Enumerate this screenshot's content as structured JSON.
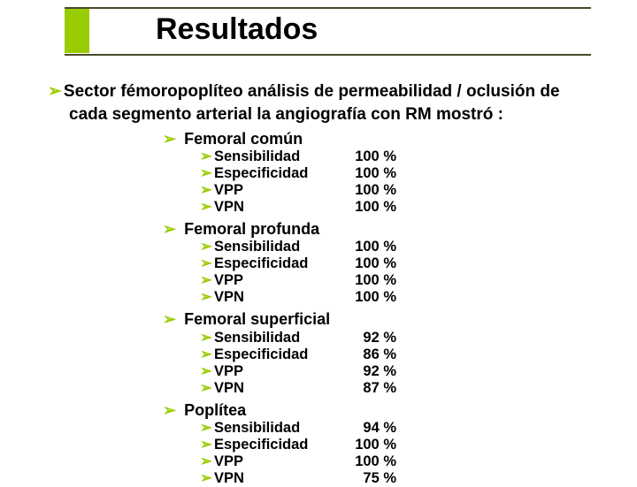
{
  "title": "Resultados",
  "intro_line1": "Sector fémoropoplíteo análisis de permeabilidad / oclusión de",
  "intro_line2": "cada segmento arterial la angiografía con RM mostró  :",
  "bullet_glyph": "➢",
  "colors": {
    "accent": "#99cc00",
    "rule": "#4a4a2a",
    "text": "#000000",
    "background": "#ffffff"
  },
  "sections": [
    {
      "heading": "Femoral común",
      "metrics": [
        {
          "label": "Sensibilidad",
          "value": "100 %"
        },
        {
          "label": "Especificidad",
          "value": "100 %"
        },
        {
          "label": "VPP",
          "value": "100 %"
        },
        {
          "label": "VPN",
          "value": "100 %"
        }
      ]
    },
    {
      "heading": "Femoral profunda",
      "metrics": [
        {
          "label": "Sensibilidad",
          "value": "100 %"
        },
        {
          "label": "Especificidad",
          "value": "100 %"
        },
        {
          "label": "VPP",
          "value": "100 %"
        },
        {
          "label": "VPN",
          "value": "100 %"
        }
      ]
    },
    {
      "heading": "Femoral superficial",
      "metrics": [
        {
          "label": "Sensibilidad",
          "value": "92 %"
        },
        {
          "label": "Especificidad",
          "value": "86 %"
        },
        {
          "label": "VPP",
          "value": "92 %"
        },
        {
          "label": "VPN",
          "value": "87 %"
        }
      ]
    },
    {
      "heading": "Poplítea",
      "metrics": [
        {
          "label": "Sensibilidad",
          "value": "94 %"
        },
        {
          "label": "Especificidad",
          "value": "100 %"
        },
        {
          "label": "VPP",
          "value": "100 %"
        },
        {
          "label": "VPN",
          "value": "75 %"
        }
      ]
    }
  ]
}
